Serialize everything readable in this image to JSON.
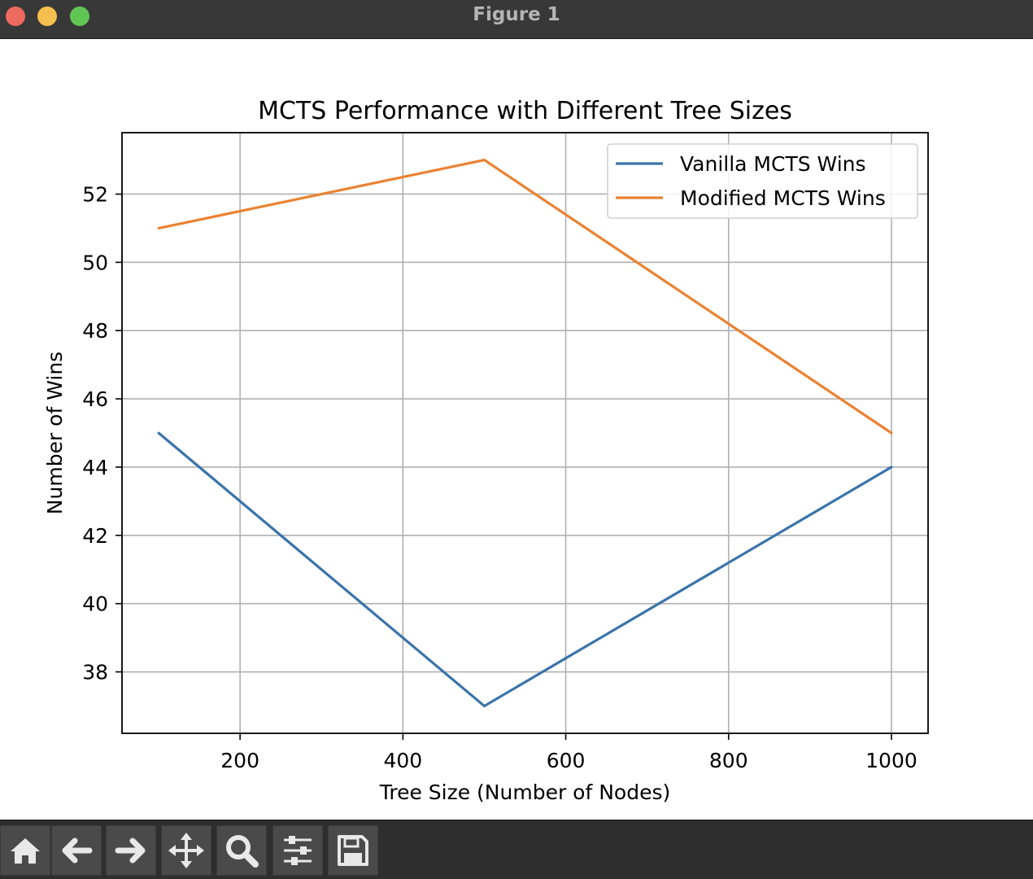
{
  "window": {
    "title": "Figure 1",
    "controls": [
      "close",
      "minimize",
      "zoom"
    ]
  },
  "chart_data": {
    "type": "line",
    "title": "MCTS Performance with Different Tree Sizes",
    "xlabel": "Tree Size (Number of Nodes)",
    "ylabel": "Number of Wins",
    "x": [
      100,
      500,
      1000
    ],
    "series": [
      {
        "name": "Vanilla MCTS Wins",
        "values": [
          45,
          37,
          44
        ],
        "color": "#3a73aa"
      },
      {
        "name": "Modified MCTS Wins",
        "values": [
          51,
          53,
          45
        ],
        "color": "#ea8232"
      }
    ],
    "xlim": [
      55,
      1045
    ],
    "ylim": [
      36.2,
      53.8
    ],
    "xticks": [
      200,
      400,
      600,
      800,
      1000
    ],
    "yticks": [
      38,
      40,
      42,
      44,
      46,
      48,
      50,
      52
    ],
    "grid": true,
    "legend_position": "top-right"
  },
  "toolbar": {
    "buttons": [
      {
        "name": "home-icon"
      },
      {
        "name": "back-arrow-icon"
      },
      {
        "name": "forward-arrow-icon"
      },
      {
        "name": "pan-move-icon"
      },
      {
        "name": "zoom-magnifier-icon"
      },
      {
        "name": "configure-subplots-icon"
      },
      {
        "name": "save-floppy-icon"
      }
    ]
  }
}
